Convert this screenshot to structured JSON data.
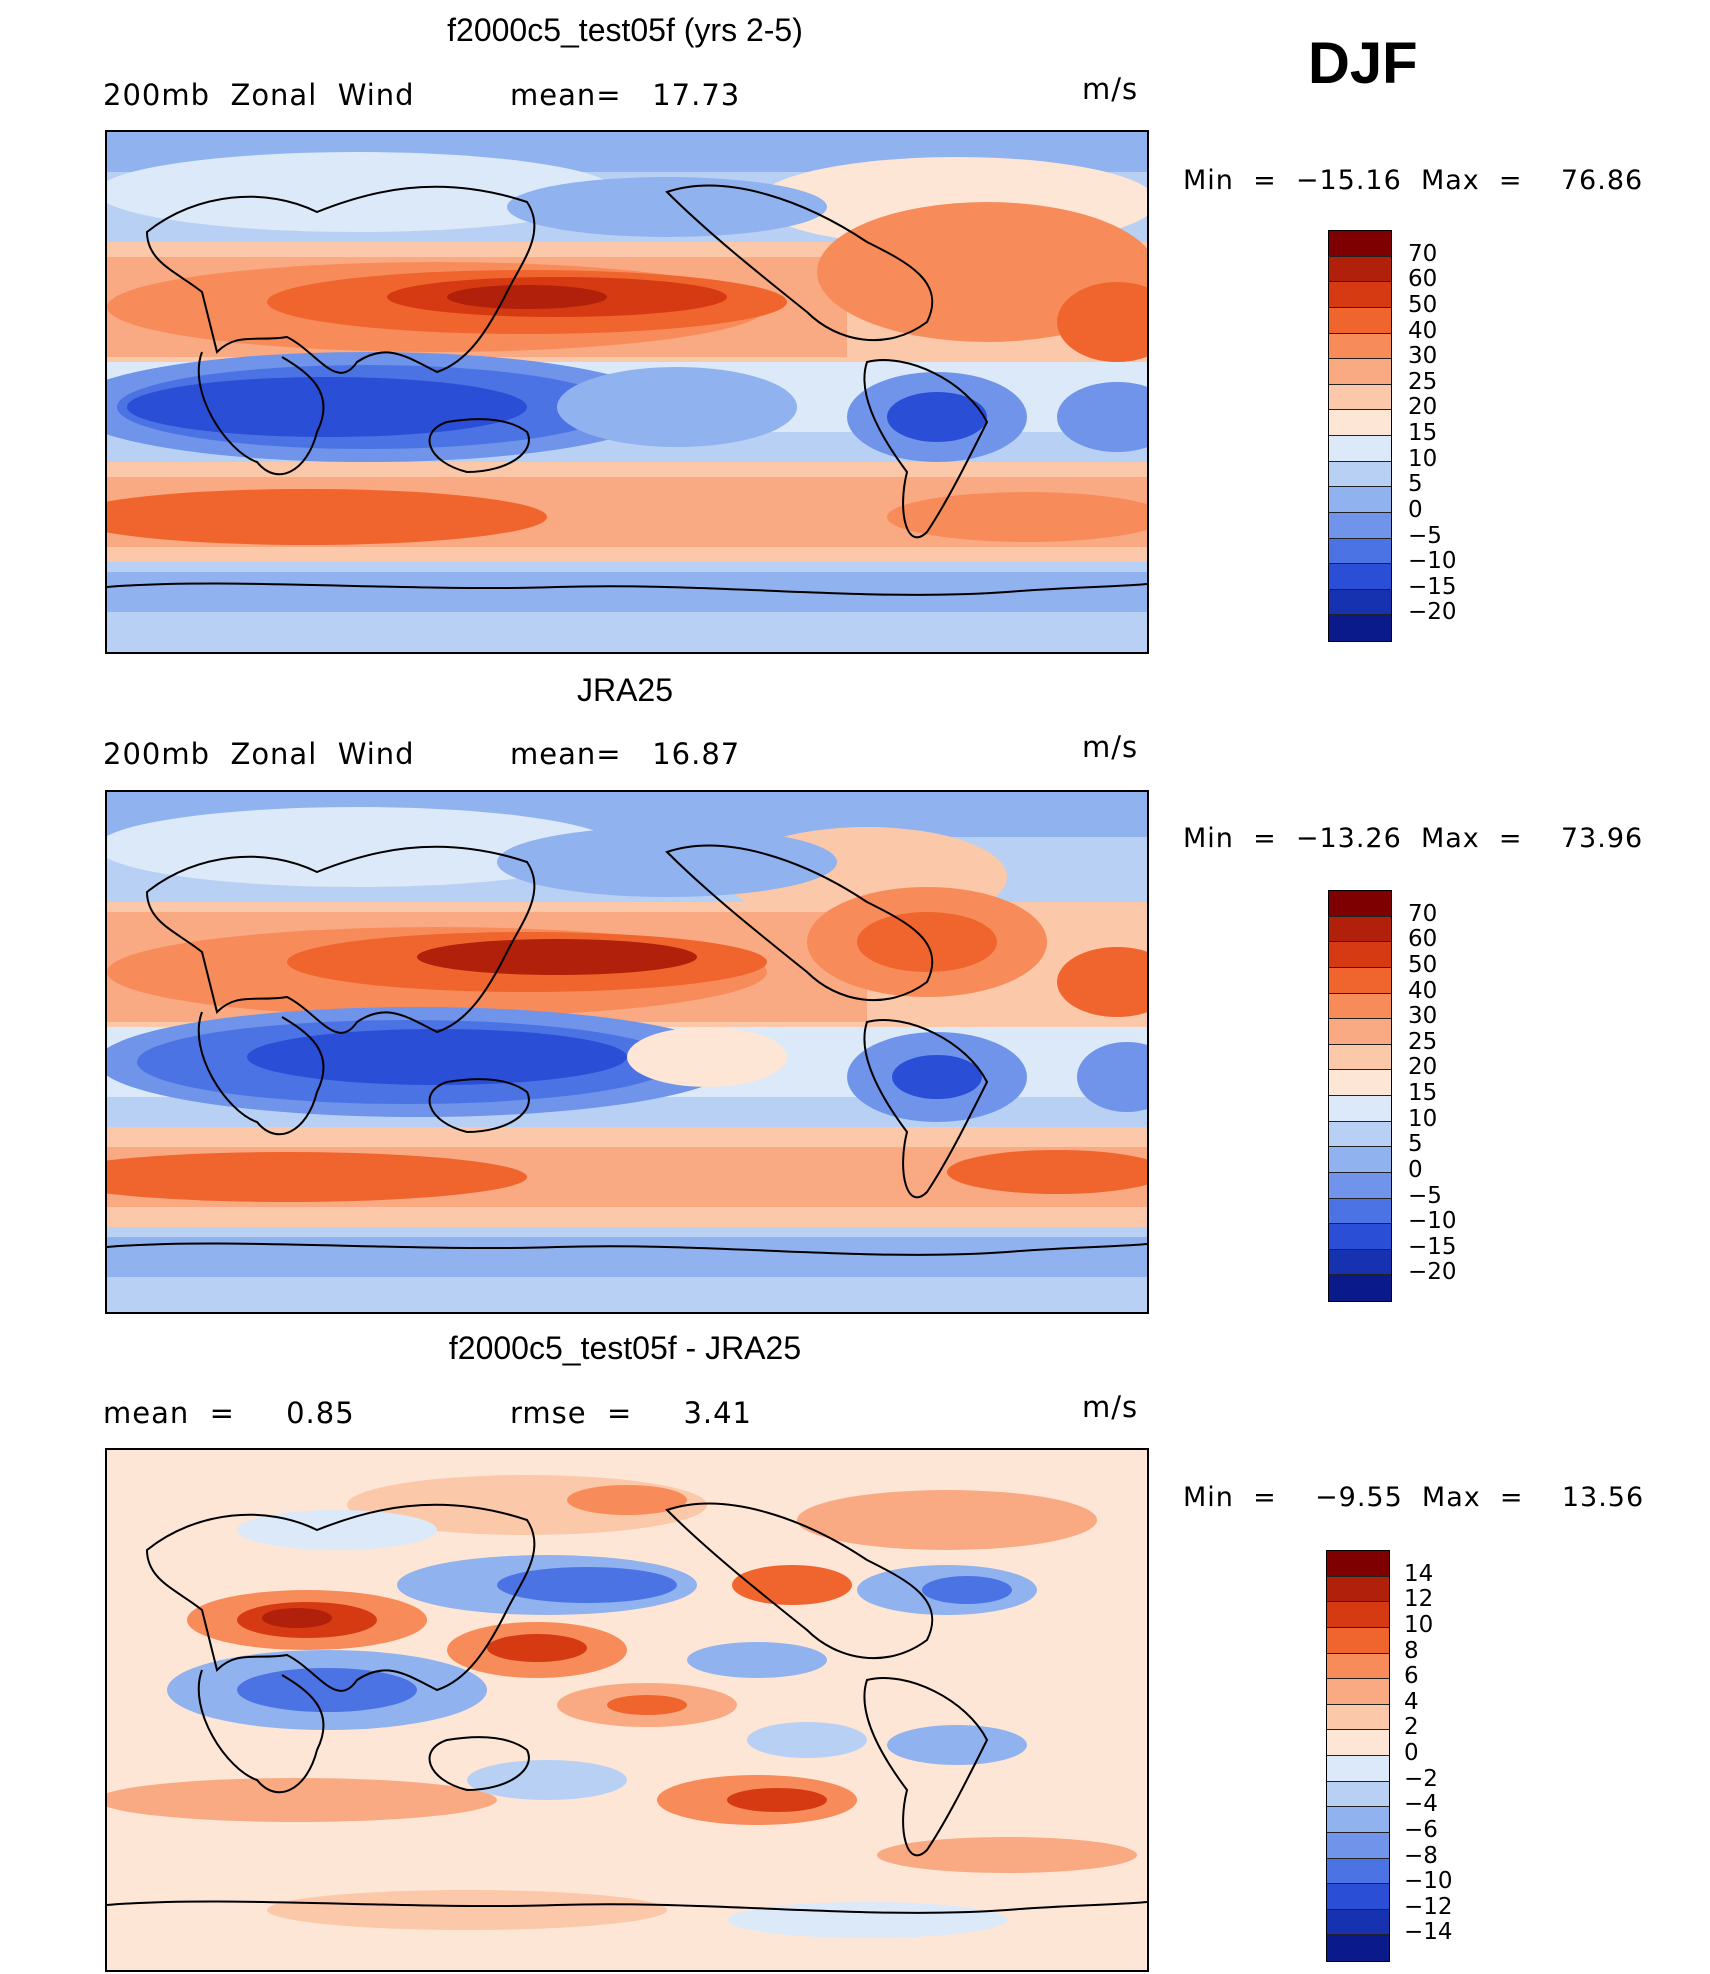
{
  "season": "DJF",
  "panels": [
    {
      "title": "f2000c5_test05f (yrs 2-5)",
      "left_label": "200mb  Zonal  Wind",
      "middle_label": "mean=   17.73",
      "units": "m/s",
      "min_label": "Min  =  −15.16  Max  =    76.86",
      "colorbar": {
        "levels": [
          "70",
          "60",
          "50",
          "40",
          "30",
          "25",
          "20",
          "15",
          "10",
          "5",
          "0",
          "−5",
          "−10",
          "−15",
          "−20"
        ],
        "colors": [
          "#7f0000",
          "#b0200a",
          "#d63a12",
          "#f0642e",
          "#f78c5a",
          "#f9aa82",
          "#fbc8aa",
          "#fde6d6",
          "#dbe9f8",
          "#b8d0f4",
          "#90b2ef",
          "#6f94ea",
          "#4c73e4",
          "#2a4fd6",
          "#1632b0",
          "#0b1a8a"
        ]
      }
    },
    {
      "title": "JRA25",
      "left_label": "200mb  Zonal  Wind",
      "middle_label": "mean=   16.87",
      "units": "m/s",
      "min_label": "Min  =  −13.26  Max  =    73.96",
      "colorbar": {
        "levels": [
          "70",
          "60",
          "50",
          "40",
          "30",
          "25",
          "20",
          "15",
          "10",
          "5",
          "0",
          "−5",
          "−10",
          "−15",
          "−20"
        ],
        "colors": [
          "#7f0000",
          "#b0200a",
          "#d63a12",
          "#f0642e",
          "#f78c5a",
          "#f9aa82",
          "#fbc8aa",
          "#fde6d6",
          "#dbe9f8",
          "#b8d0f4",
          "#90b2ef",
          "#6f94ea",
          "#4c73e4",
          "#2a4fd6",
          "#1632b0",
          "#0b1a8a"
        ]
      }
    },
    {
      "title": "f2000c5_test05f - JRA25",
      "left_label": "mean  =     0.85",
      "middle_label": "rmse  =     3.41",
      "units": "m/s",
      "min_label": "Min  =    −9.55  Max  =    13.56",
      "colorbar": {
        "levels": [
          "14",
          "12",
          "10",
          "8",
          "6",
          "4",
          "2",
          "0",
          "−2",
          "−4",
          "−6",
          "−8",
          "−10",
          "−12",
          "−14"
        ],
        "colors": [
          "#7f0000",
          "#b0200a",
          "#d63a12",
          "#f0642e",
          "#f78c5a",
          "#f9aa82",
          "#fbc8aa",
          "#fde6d6",
          "#dbe9f8",
          "#b8d0f4",
          "#90b2ef",
          "#6f94ea",
          "#4c73e4",
          "#2a4fd6",
          "#1632b0",
          "#0b1a8a"
        ]
      }
    }
  ]
}
